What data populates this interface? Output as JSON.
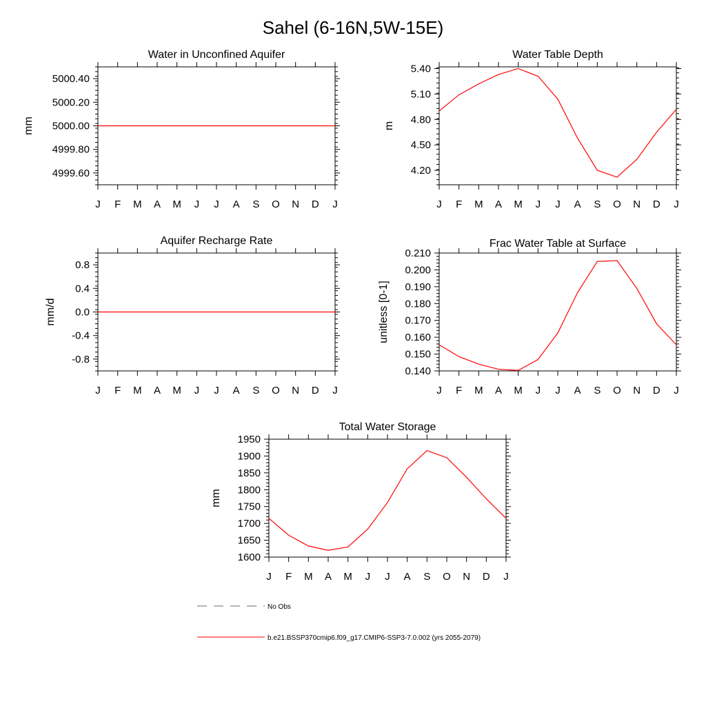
{
  "figure_title": "Sahel (6-16N,5W-15E)",
  "legend": {
    "obs_label": "No Obs",
    "model_label": "b.e21.BSSP370cmip6.f09_g17.CMIP6-SSP3-7.0.002 (yrs 2055-2079)",
    "obs_color": "#888888",
    "model_color": "#ff0000"
  },
  "chart_data": [
    {
      "type": "line",
      "title": "Water in Unconfined Aquifer",
      "ylabel": "mm",
      "xlabel": "",
      "categories": [
        "J",
        "F",
        "M",
        "A",
        "M",
        "J",
        "J",
        "A",
        "S",
        "O",
        "N",
        "D",
        "J"
      ],
      "ylim": [
        4999.5,
        5000.5
      ],
      "yticks": [
        4999.6,
        4999.8,
        5000.0,
        5000.2,
        5000.4
      ],
      "ytick_labels": [
        "4999.60",
        "4999.80",
        "5000.00",
        "5000.20",
        "5000.40"
      ],
      "series": [
        {
          "name": "model",
          "values": [
            5000.0,
            5000.0,
            5000.0,
            5000.0,
            5000.0,
            5000.0,
            5000.0,
            5000.0,
            5000.0,
            5000.0,
            5000.0,
            5000.0,
            5000.0
          ]
        }
      ]
    },
    {
      "type": "line",
      "title": "Water Table Depth",
      "ylabel": "m",
      "xlabel": "",
      "categories": [
        "J",
        "F",
        "M",
        "A",
        "M",
        "J",
        "J",
        "A",
        "S",
        "O",
        "N",
        "D",
        "J"
      ],
      "ylim": [
        4.03,
        5.42
      ],
      "yticks": [
        4.2,
        4.5,
        4.8,
        5.1,
        5.4
      ],
      "ytick_labels": [
        "4.20",
        "4.50",
        "4.80",
        "5.10",
        "5.40"
      ],
      "series": [
        {
          "name": "model",
          "values": [
            4.9,
            5.09,
            5.22,
            5.33,
            5.4,
            5.31,
            5.04,
            4.58,
            4.2,
            4.12,
            4.33,
            4.65,
            4.92
          ]
        }
      ]
    },
    {
      "type": "line",
      "title": "Aquifer Recharge Rate",
      "ylabel": "mm/d",
      "xlabel": "",
      "categories": [
        "J",
        "F",
        "M",
        "A",
        "M",
        "J",
        "J",
        "A",
        "S",
        "O",
        "N",
        "D",
        "J"
      ],
      "ylim": [
        -1.0,
        1.0
      ],
      "yticks": [
        -0.8,
        -0.4,
        0.0,
        0.4,
        0.8
      ],
      "ytick_labels": [
        "-0.8",
        "-0.4",
        "0.0",
        "0.4",
        "0.8"
      ],
      "series": [
        {
          "name": "model",
          "values": [
            0,
            0,
            0,
            0,
            0,
            0,
            0,
            0,
            0,
            0,
            0,
            0,
            0
          ]
        }
      ]
    },
    {
      "type": "line",
      "title": "Frac Water Table at Surface",
      "ylabel": "unitless [0-1]",
      "xlabel": "",
      "categories": [
        "J",
        "F",
        "M",
        "A",
        "M",
        "J",
        "J",
        "A",
        "S",
        "O",
        "N",
        "D",
        "J"
      ],
      "ylim": [
        0.14,
        0.21
      ],
      "yticks": [
        0.14,
        0.15,
        0.16,
        0.17,
        0.18,
        0.19,
        0.2,
        0.21
      ],
      "ytick_labels": [
        "0.140",
        "0.150",
        "0.160",
        "0.170",
        "0.180",
        "0.190",
        "0.200",
        "0.210"
      ],
      "series": [
        {
          "name": "model",
          "values": [
            0.1555,
            0.1485,
            0.144,
            0.141,
            0.1403,
            0.1468,
            0.1625,
            0.1865,
            0.205,
            0.2055,
            0.189,
            0.168,
            0.1555
          ]
        }
      ]
    },
    {
      "type": "line",
      "title": "Total Water Storage",
      "ylabel": "mm",
      "xlabel": "",
      "categories": [
        "J",
        "F",
        "M",
        "A",
        "M",
        "J",
        "J",
        "A",
        "S",
        "O",
        "N",
        "D",
        "J"
      ],
      "ylim": [
        1600,
        1950
      ],
      "yticks": [
        1600,
        1650,
        1700,
        1750,
        1800,
        1850,
        1900,
        1950
      ],
      "ytick_labels": [
        "1600",
        "1650",
        "1700",
        "1750",
        "1800",
        "1850",
        "1900",
        "1950"
      ],
      "series": [
        {
          "name": "model",
          "values": [
            1715,
            1665,
            1633,
            1620,
            1630,
            1683,
            1762,
            1862,
            1916,
            1895,
            1837,
            1773,
            1715
          ]
        }
      ]
    }
  ]
}
